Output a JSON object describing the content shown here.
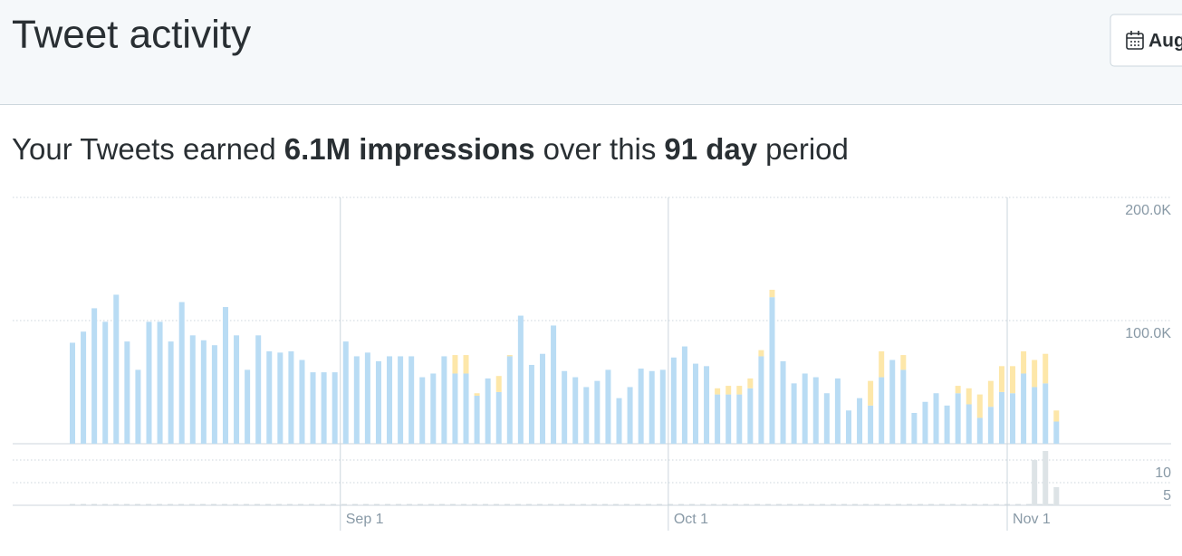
{
  "header": {
    "title": "Tweet activity",
    "date_button": "Aug"
  },
  "summary": {
    "parts": [
      "Your Tweets earned",
      "6.1M impressions",
      "over this",
      "91 day",
      "period"
    ]
  },
  "chart_data": [
    {
      "type": "bar",
      "stacked": true,
      "grid": true,
      "series": [
        {
          "color": "#b9dcf4",
          "values": [
            82000,
            91000,
            110000,
            99000,
            121000,
            83000,
            60000,
            99000,
            99000,
            83000,
            115000,
            88000,
            84000,
            80000,
            111000,
            88000,
            60000,
            88000,
            75000,
            74000,
            75000,
            68000,
            58000,
            58000,
            58000,
            83000,
            71000,
            74000,
            67000,
            71000,
            71000,
            71000,
            54000,
            57000,
            71000,
            57000,
            57000,
            39000,
            53000,
            42000,
            71000,
            104000,
            64000,
            73000,
            96000,
            59000,
            54000,
            46000,
            51000,
            60000,
            37000,
            46000,
            61000,
            59000,
            60000,
            70000,
            79000,
            65000,
            63000,
            40000,
            40000,
            40000,
            45000,
            71000,
            119000,
            67000,
            49000,
            57000,
            54000,
            41000,
            53000,
            27000,
            37000,
            31000,
            54000,
            68000,
            60000,
            25000,
            34000,
            41000,
            31000,
            41000,
            32000,
            21000,
            30000,
            42000,
            41000,
            57000,
            46000,
            49000,
            18000
          ]
        },
        {
          "color": "#fde7a9",
          "values": [
            0,
            0,
            0,
            0,
            0,
            0,
            0,
            0,
            0,
            0,
            0,
            0,
            0,
            0,
            0,
            0,
            0,
            0,
            0,
            0,
            0,
            0,
            0,
            0,
            0,
            0,
            0,
            0,
            0,
            0,
            0,
            0,
            0,
            0,
            0,
            15000,
            15000,
            2000,
            0,
            13000,
            1000,
            0,
            0,
            0,
            0,
            0,
            0,
            0,
            0,
            0,
            0,
            0,
            0,
            0,
            0,
            0,
            0,
            0,
            0,
            5000,
            7000,
            7000,
            8000,
            5000,
            6000,
            0,
            0,
            0,
            0,
            0,
            0,
            0,
            0,
            20000,
            21000,
            0,
            12000,
            0,
            0,
            0,
            0,
            6000,
            13000,
            19000,
            21000,
            21000,
            22000,
            18000,
            22000,
            24000,
            9000
          ]
        }
      ],
      "ylim": [
        0,
        200000
      ],
      "yticks": [
        {
          "value": 100000,
          "label": "100.0K"
        },
        {
          "value": 200000,
          "label": "200.0K"
        }
      ]
    },
    {
      "type": "bar",
      "grid": true,
      "categories": [
        null,
        null,
        null,
        null,
        null,
        null,
        null,
        null,
        null,
        null,
        null,
        null,
        null,
        null,
        null,
        null,
        null,
        null,
        null,
        null,
        null,
        null,
        null,
        null,
        null,
        "Sep 1",
        null,
        null,
        null,
        null,
        null,
        null,
        null,
        null,
        null,
        null,
        null,
        null,
        null,
        null,
        null,
        null,
        null,
        null,
        null,
        null,
        null,
        null,
        null,
        null,
        null,
        null,
        null,
        null,
        null,
        "Oct 1",
        null,
        null,
        null,
        null,
        null,
        null,
        null,
        null,
        null,
        null,
        null,
        null,
        null,
        null,
        null,
        null,
        null,
        null,
        null,
        null,
        null,
        null,
        null,
        null,
        null,
        null,
        null,
        null,
        null,
        null,
        "Nov 1",
        null,
        null,
        null,
        null
      ],
      "color": "#dde3e6",
      "values": [
        0,
        0,
        0,
        0,
        0,
        0,
        0,
        0,
        0,
        0,
        0,
        0,
        0,
        0,
        0,
        0,
        0,
        0,
        0,
        0,
        0,
        0,
        0,
        0,
        0,
        0,
        0,
        0,
        0,
        0,
        0,
        0,
        0,
        0,
        0,
        0,
        0,
        0,
        0,
        0,
        0,
        0,
        0,
        0,
        0,
        0,
        0,
        0,
        0,
        0,
        0,
        0,
        0,
        0,
        0,
        0,
        0,
        0,
        0,
        0,
        0,
        0,
        0,
        0,
        0,
        0,
        0,
        0,
        0,
        0,
        0,
        0,
        0,
        0,
        0,
        0,
        0,
        0,
        0,
        0,
        0,
        0,
        0,
        0,
        0,
        0,
        0,
        0,
        10,
        12,
        4
      ],
      "ylim": [
        0,
        12
      ],
      "yticks": [
        5,
        10
      ]
    }
  ]
}
